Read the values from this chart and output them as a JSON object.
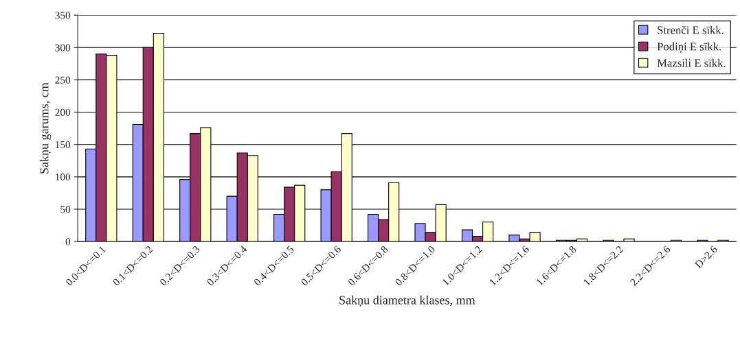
{
  "chart_data": {
    "type": "bar",
    "xlabel": "Sakņu diametra klases, mm",
    "ylabel": "Sakņu garums, cm",
    "categories": [
      "0.0<D<=0.1",
      "0.1<D<=0.2",
      "0.2<D<=0.3",
      "0.3<D<=0.4",
      "0.4<D<=0.5",
      "0.5<D<=0.6",
      "0.6<D<=0.8",
      "0.8<D<=1.0",
      "1.0<D<=1.2",
      "1.2<D<=1.6",
      "1.6<D<=1.8",
      "1.8<D<=2.2",
      "2.2<D<=2.6",
      "D>2.6"
    ],
    "series": [
      {
        "name": "Strenči E sīkk.",
        "color": "#9999ff",
        "values": [
          143,
          181,
          96,
          70,
          42,
          80,
          42,
          28,
          18,
          10,
          2,
          2,
          0,
          2
        ]
      },
      {
        "name": "Podiņi E sīkk.",
        "color": "#993366",
        "values": [
          290,
          300,
          167,
          137,
          84,
          108,
          34,
          14,
          8,
          4,
          2,
          0,
          0,
          0
        ]
      },
      {
        "name": "Mazsili E sīkk.",
        "color": "#ffffcc",
        "values": [
          288,
          322,
          176,
          133,
          87,
          167,
          91,
          57,
          30,
          14,
          4,
          4,
          2,
          2
        ]
      }
    ],
    "ylim": [
      0,
      350
    ],
    "yticks": [
      0,
      50,
      100,
      150,
      200,
      250,
      300,
      350
    ],
    "grid": "y",
    "legend": "top right"
  }
}
